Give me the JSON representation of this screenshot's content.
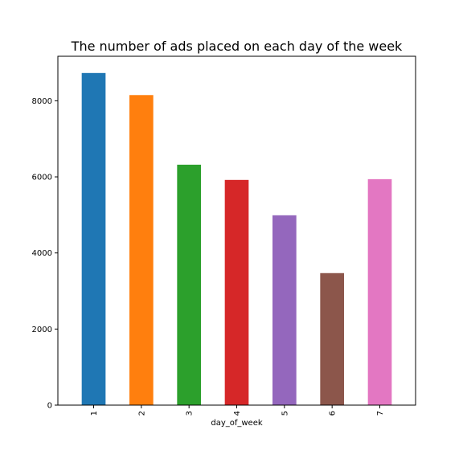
{
  "chart_data": {
    "type": "bar",
    "title": "The number of ads placed on each day of the week",
    "xlabel": "day_of_week",
    "ylabel": "",
    "categories": [
      "1",
      "2",
      "3",
      "4",
      "5",
      "6",
      "7"
    ],
    "values": [
      8730,
      8150,
      6320,
      5920,
      4990,
      3470,
      5940
    ],
    "colors": [
      "#1f77b4",
      "#ff7f0e",
      "#2ca02c",
      "#d62728",
      "#9467bd",
      "#8c564b",
      "#e377c2"
    ],
    "yticks": [
      0,
      2000,
      4000,
      6000,
      8000
    ],
    "ytick_labels": [
      "0",
      "2000",
      "4000",
      "6000",
      "8000"
    ],
    "ylim": [
      0,
      9170
    ],
    "grid": false,
    "legend": "none",
    "xtick_rotation": "vertical"
  }
}
